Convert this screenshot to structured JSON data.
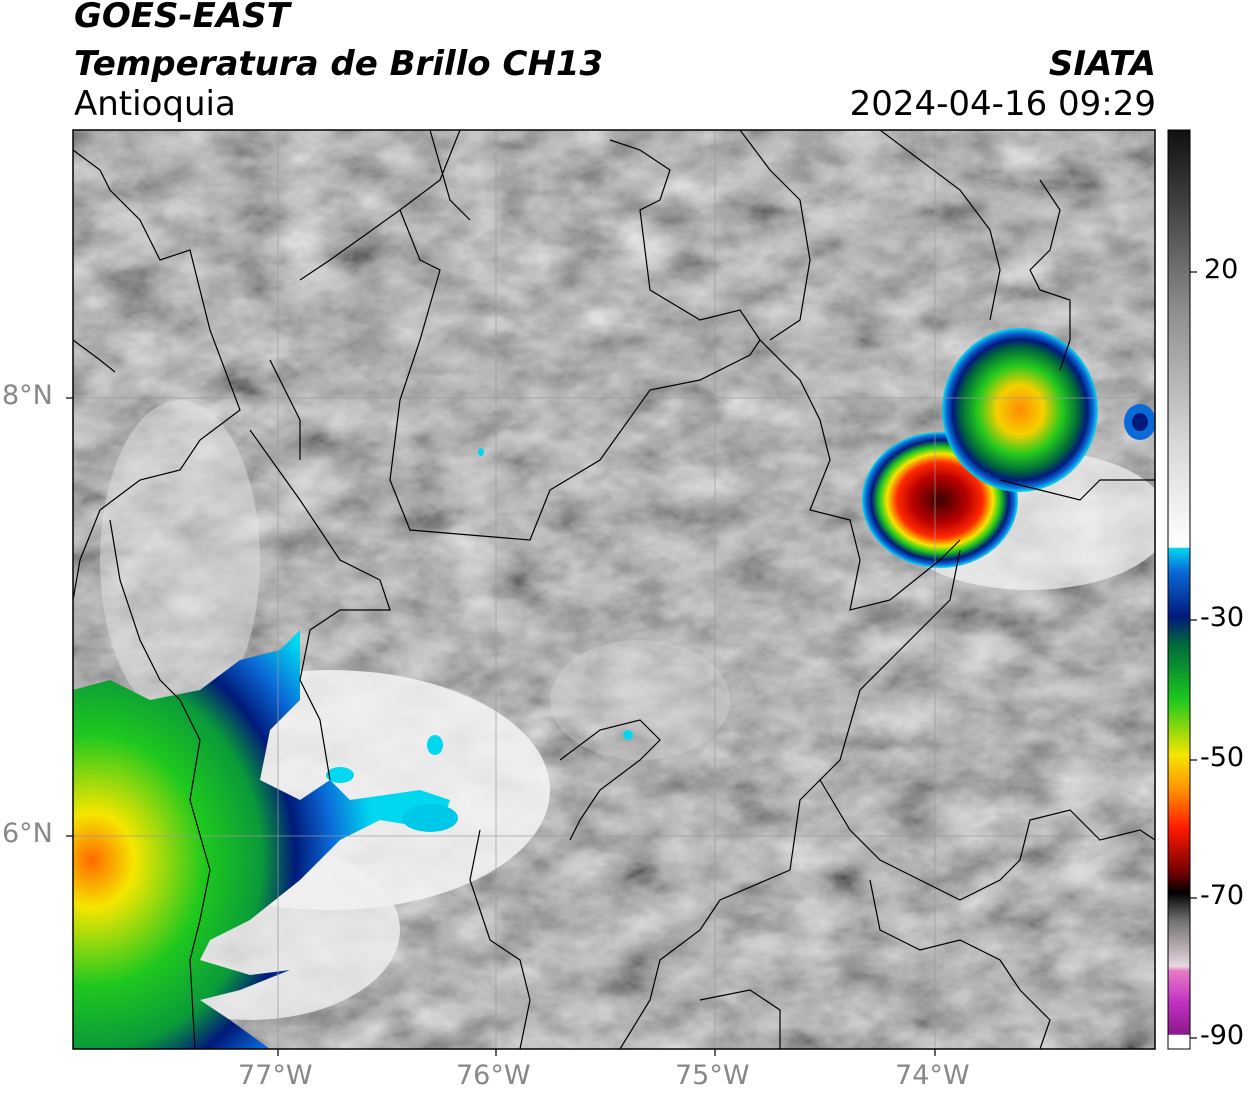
{
  "header": {
    "satellite": "GOES-EAST",
    "product": "Temperatura de Brillo CH13",
    "region": "Antioquia",
    "agency": "SIATA",
    "datetime": "2024-04-16 09:29"
  },
  "axes": {
    "lat_labels": [
      "8°N",
      "6°N"
    ],
    "lon_labels": [
      "77°W",
      "76°W",
      "75°W",
      "74°W"
    ]
  },
  "colorbar": {
    "tick_labels": [
      "20",
      "-30",
      "-50",
      "-70",
      "-90"
    ],
    "colors": {
      "magenta": "#b01fb0",
      "pink": "#e870c8",
      "black": "#000000",
      "darkred": "#6a0000",
      "red": "#ff1a00",
      "orange": "#ff8c00",
      "yellow": "#f5e600",
      "green": "#1ec81e",
      "darkgreen": "#006a3a",
      "navy": "#001a7a",
      "blue": "#0a6ad8",
      "cyan": "#00d8f0",
      "white": "#ffffff",
      "gray": "#808080"
    }
  }
}
